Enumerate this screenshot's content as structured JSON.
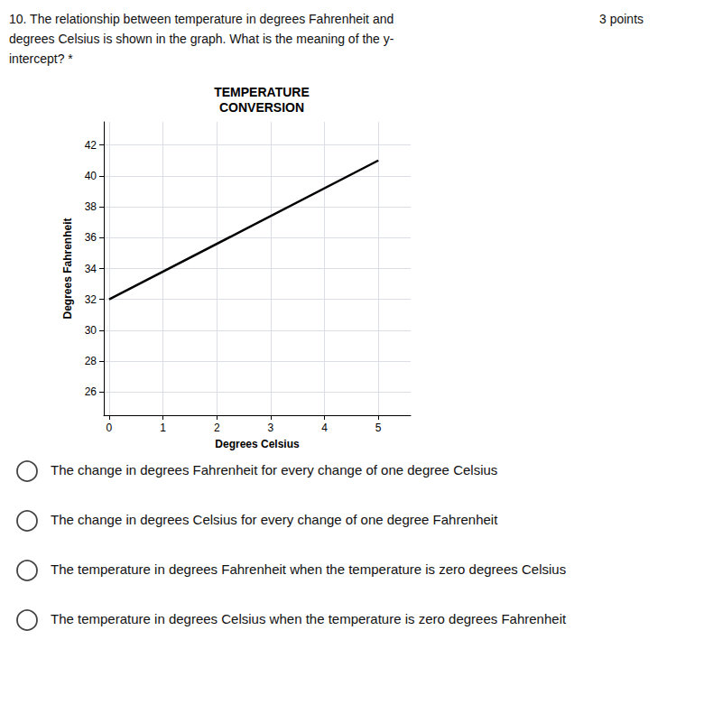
{
  "chart_data": {
    "type": "line",
    "title": "TEMPERATURE\nCONVERSION",
    "x_label": "Degrees Celsius",
    "y_label": "Degrees Fahrenheit",
    "x": [
      0,
      5
    ],
    "values": [
      32,
      41
    ],
    "color": "#000000",
    "xlim": [
      -0.1,
      5.6
    ],
    "xticks": [
      0,
      1,
      2,
      3,
      4,
      5
    ],
    "ylim": [
      24.5,
      43.5
    ],
    "yticks": [
      26,
      28,
      30,
      32,
      34,
      36,
      38,
      40,
      42
    ],
    "grid": true,
    "annotations": {
      "question": [
        "10. The relationship between temperature in degrees Fahrenheit and",
        "degrees Celsius is shown in the graph. What is the meaning of the y-",
        "intercept? *"
      ],
      "points": "3 points",
      "choices": [
        "The change in degrees Fahrenheit for every change of one degree Celsius",
        "The change in degrees Celsius for every change of one degree Fahrenheit",
        "The temperature in degrees Fahrenheit when the temperature is zero degrees Celsius",
        "The temperature in degrees Celsius when the temperature is zero degrees Fahrenheit"
      ]
    }
  }
}
